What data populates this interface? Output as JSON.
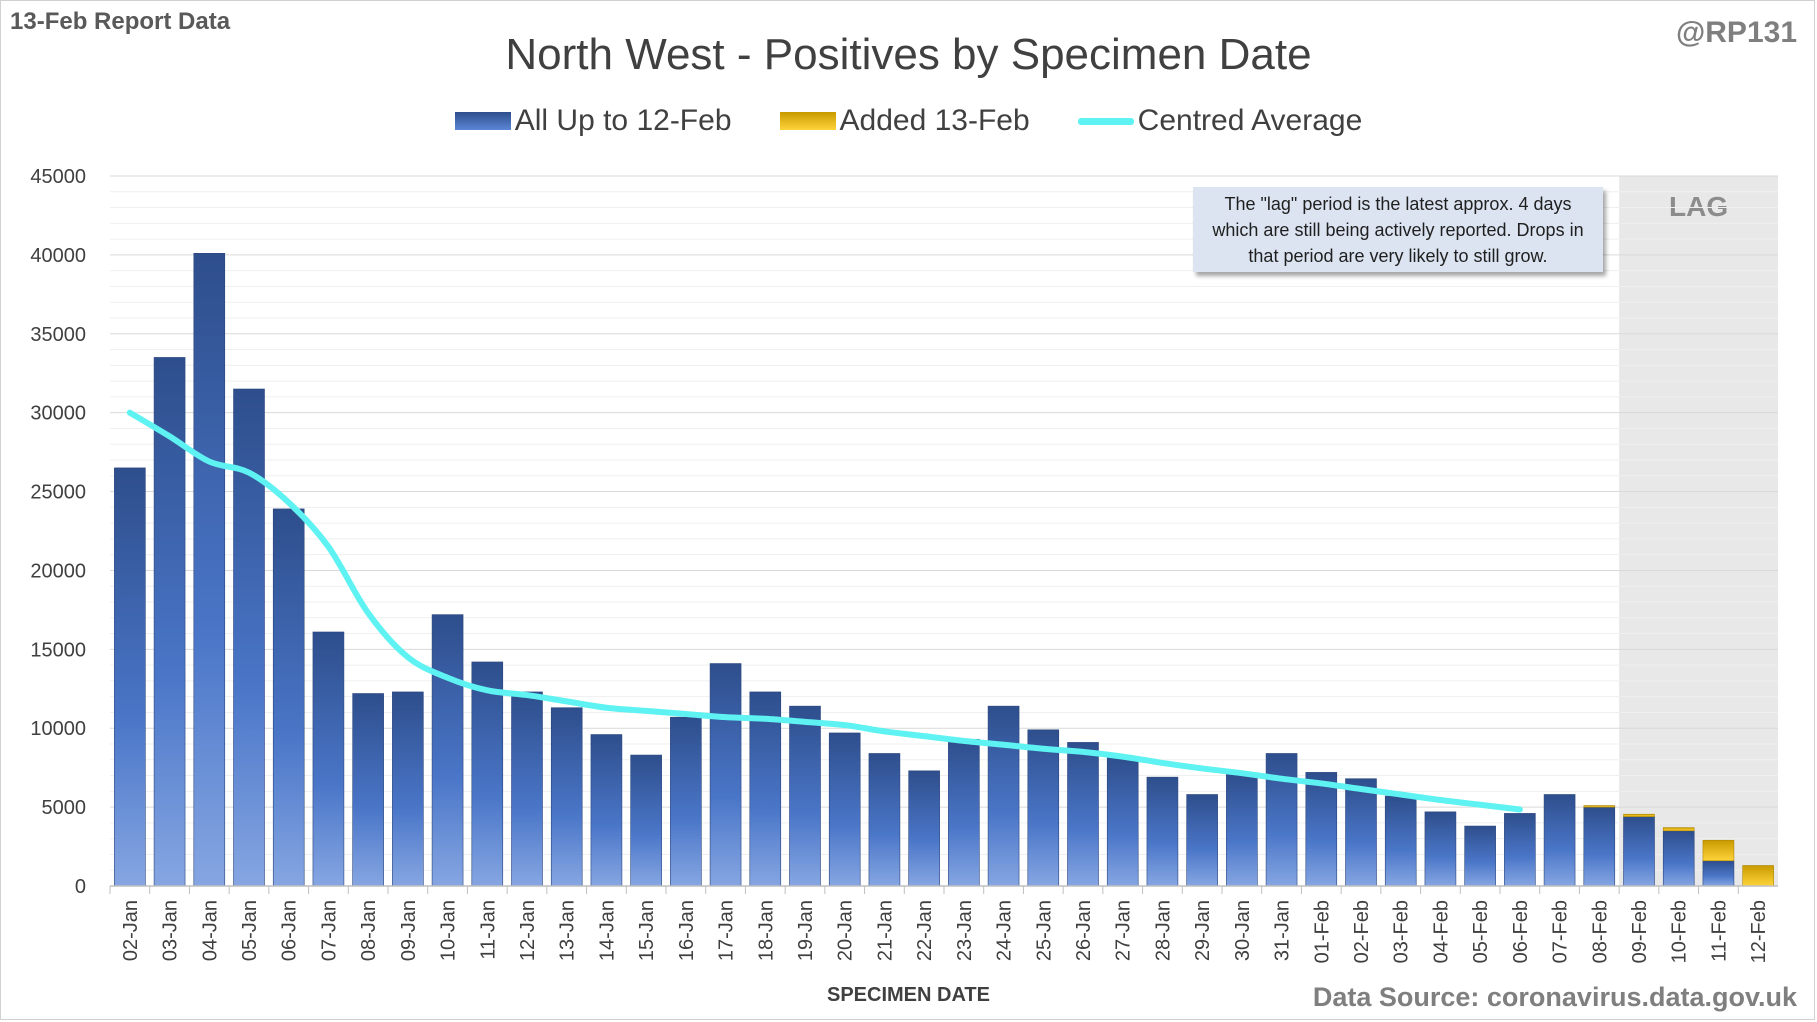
{
  "header": {
    "report_label": "13-Feb Report Data",
    "handle": "@RP131",
    "title": "North West - Positives by Specimen Date"
  },
  "legend": {
    "all": "All Up to 12-Feb",
    "added": "Added 13-Feb",
    "avg": "Centred Average"
  },
  "annotation": {
    "note": "The \"lag\" period is the latest approx. 4 days which are still being actively reported.  Drops in that period are very likely to still grow.",
    "lag_label": "LAG"
  },
  "footer": {
    "xlabel": "SPECIMEN DATE",
    "source": "Data Source: coronavirus.data.gov.uk"
  },
  "colors": {
    "bar_top": "#2e4e8c",
    "bar_bottom": "#7ea0e0",
    "added_top": "#c89a00",
    "added_bottom": "#ffd43b",
    "avg_line": "#5ff2f2",
    "lag_band": "#e8e8e8"
  },
  "chart_data": {
    "type": "bar",
    "title": "North West - Positives by Specimen Date",
    "xlabel": "SPECIMEN DATE",
    "ylabel": "",
    "ylim": [
      0,
      45000
    ],
    "yticks": [
      0,
      5000,
      10000,
      15000,
      20000,
      25000,
      30000,
      35000,
      40000,
      45000
    ],
    "grid": true,
    "legend_position": "top",
    "lag_categories": [
      "09-Feb",
      "10-Feb",
      "11-Feb",
      "12-Feb"
    ],
    "categories": [
      "02-Jan",
      "03-Jan",
      "04-Jan",
      "05-Jan",
      "06-Jan",
      "07-Jan",
      "08-Jan",
      "09-Jan",
      "10-Jan",
      "11-Jan",
      "12-Jan",
      "13-Jan",
      "14-Jan",
      "15-Jan",
      "16-Jan",
      "17-Jan",
      "18-Jan",
      "19-Jan",
      "20-Jan",
      "21-Jan",
      "22-Jan",
      "23-Jan",
      "24-Jan",
      "25-Jan",
      "26-Jan",
      "27-Jan",
      "28-Jan",
      "29-Jan",
      "30-Jan",
      "31-Jan",
      "01-Feb",
      "02-Feb",
      "03-Feb",
      "04-Feb",
      "05-Feb",
      "06-Feb",
      "07-Feb",
      "08-Feb",
      "09-Feb",
      "10-Feb",
      "11-Feb",
      "12-Feb"
    ],
    "series": [
      {
        "name": "All Up to 12-Feb",
        "values": [
          26500,
          33500,
          40100,
          31500,
          23900,
          16100,
          12200,
          12300,
          17200,
          14200,
          12300,
          11300,
          9600,
          8300,
          10700,
          14100,
          12300,
          11400,
          9700,
          8400,
          7300,
          9300,
          11400,
          9900,
          9100,
          8200,
          6900,
          5800,
          7100,
          8400,
          7200,
          6800,
          5700,
          4700,
          3800,
          4600,
          5800,
          5000,
          4400,
          3500,
          1600,
          0
        ]
      },
      {
        "name": "Added 13-Feb",
        "values": [
          0,
          0,
          0,
          0,
          0,
          0,
          0,
          0,
          0,
          0,
          0,
          0,
          0,
          0,
          0,
          0,
          0,
          0,
          0,
          0,
          0,
          0,
          0,
          0,
          0,
          0,
          0,
          0,
          0,
          0,
          0,
          0,
          0,
          0,
          0,
          0,
          0,
          100,
          150,
          200,
          1300,
          1300
        ]
      },
      {
        "name": "Centred Average",
        "values": [
          30000,
          28500,
          26900,
          26200,
          24300,
          21500,
          17300,
          14500,
          13200,
          12400,
          12100,
          11700,
          11300,
          11100,
          10900,
          10700,
          10600,
          10400,
          10200,
          9800,
          9500,
          9200,
          8950,
          8700,
          8500,
          8200,
          7800,
          7450,
          7150,
          6800,
          6500,
          6150,
          5800,
          5450,
          5150,
          4850,
          null,
          null,
          null,
          null,
          null,
          null
        ]
      }
    ]
  }
}
